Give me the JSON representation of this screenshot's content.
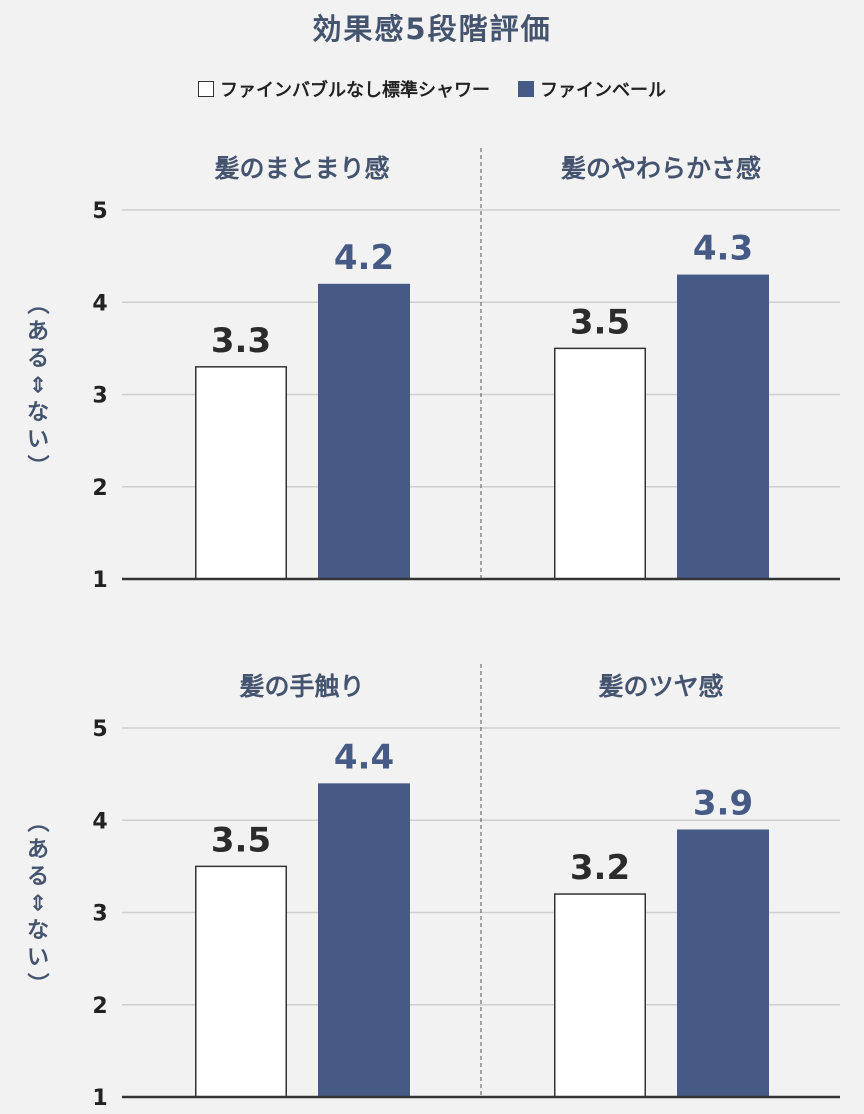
{
  "title": "効果感5段階評価",
  "legend": [
    {
      "label": "ファインバブルなし標準シャワー",
      "color": "#ffffff"
    },
    {
      "label": "ファインベール",
      "color": "#455a84"
    }
  ],
  "y_axis_label": "（ある⇕ない）",
  "chart_data": [
    {
      "type": "bar",
      "panel": "top-left",
      "title": "髪のまとまり感",
      "series": [
        {
          "name": "ファインバブルなし標準シャワー",
          "values": [
            3.3
          ]
        },
        {
          "name": "ファインベール",
          "values": [
            4.2
          ]
        }
      ],
      "data_labels": [
        "3.3",
        "4.2"
      ],
      "ylim": [
        1,
        5
      ],
      "yticks": [
        "1",
        "2",
        "3",
        "4",
        "5"
      ],
      "ylabel": "（ある⇕ない）",
      "grid": true
    },
    {
      "type": "bar",
      "panel": "top-right",
      "title": "髪のやわらかさ感",
      "series": [
        {
          "name": "ファインバブルなし標準シャワー",
          "values": [
            3.5
          ]
        },
        {
          "name": "ファインベール",
          "values": [
            4.3
          ]
        }
      ],
      "data_labels": [
        "3.5",
        "4.3"
      ],
      "ylim": [
        1,
        5
      ],
      "yticks": [
        "1",
        "2",
        "3",
        "4",
        "5"
      ],
      "grid": true
    },
    {
      "type": "bar",
      "panel": "bottom-left",
      "title": "髪の手触り",
      "series": [
        {
          "name": "ファインバブルなし標準シャワー",
          "values": [
            3.5
          ]
        },
        {
          "name": "ファインベール",
          "values": [
            4.4
          ]
        }
      ],
      "data_labels": [
        "3.5",
        "4.4"
      ],
      "ylim": [
        1,
        5
      ],
      "yticks": [
        "1",
        "2",
        "3",
        "4",
        "5"
      ],
      "ylabel": "（ある⇕ない）",
      "grid": true
    },
    {
      "type": "bar",
      "panel": "bottom-right",
      "title": "髪のツヤ感",
      "series": [
        {
          "name": "ファインバブルなし標準シャワー",
          "values": [
            3.2
          ]
        },
        {
          "name": "ファインベール",
          "values": [
            3.9
          ]
        }
      ],
      "data_labels": [
        "3.2",
        "3.9"
      ],
      "ylim": [
        1,
        5
      ],
      "yticks": [
        "1",
        "2",
        "3",
        "4",
        "5"
      ],
      "grid": true
    }
  ],
  "colors": {
    "bar_standard": "#ffffff",
    "bar_standard_border": "#333333",
    "bar_fineveil": "#455a84",
    "label_standard": "#2b2b2b",
    "label_fineveil": "#455a84",
    "panel_title": "#44546f",
    "grid": "#cfcfcf",
    "axis": "#333333"
  }
}
